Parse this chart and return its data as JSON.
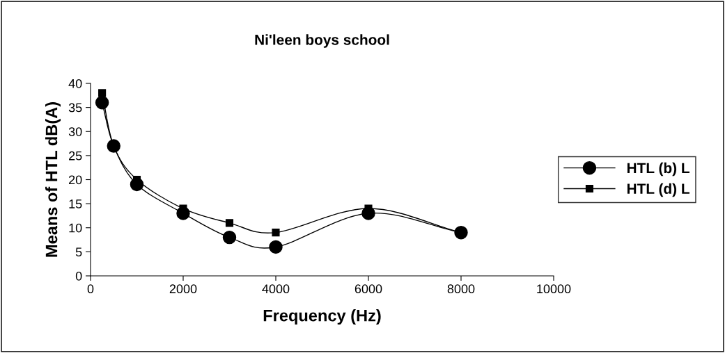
{
  "chart_data": {
    "type": "line",
    "title": "Ni'leen boys school",
    "xlabel": "Frequency (Hz)",
    "ylabel": "Means of HTL dB(A)",
    "x": [
      250,
      500,
      1000,
      2000,
      3000,
      4000,
      6000,
      8000
    ],
    "series": [
      {
        "name": "HTL (b) L",
        "color": "#000000",
        "marker": "circle",
        "values": [
          36,
          27,
          19,
          13,
          8,
          6,
          13,
          9
        ]
      },
      {
        "name": "HTL (d) L",
        "color": "#000000",
        "marker": "square",
        "values": [
          38,
          27,
          20,
          14,
          11,
          9,
          14,
          9
        ]
      }
    ],
    "xlim": [
      0,
      10000
    ],
    "xticks": [
      0,
      2000,
      4000,
      6000,
      8000,
      10000
    ],
    "ylim": [
      0,
      40
    ],
    "yticks": [
      0,
      5,
      10,
      15,
      20,
      25,
      30,
      35,
      40
    ],
    "grid": false,
    "legend": "right",
    "line_style": "solid"
  }
}
